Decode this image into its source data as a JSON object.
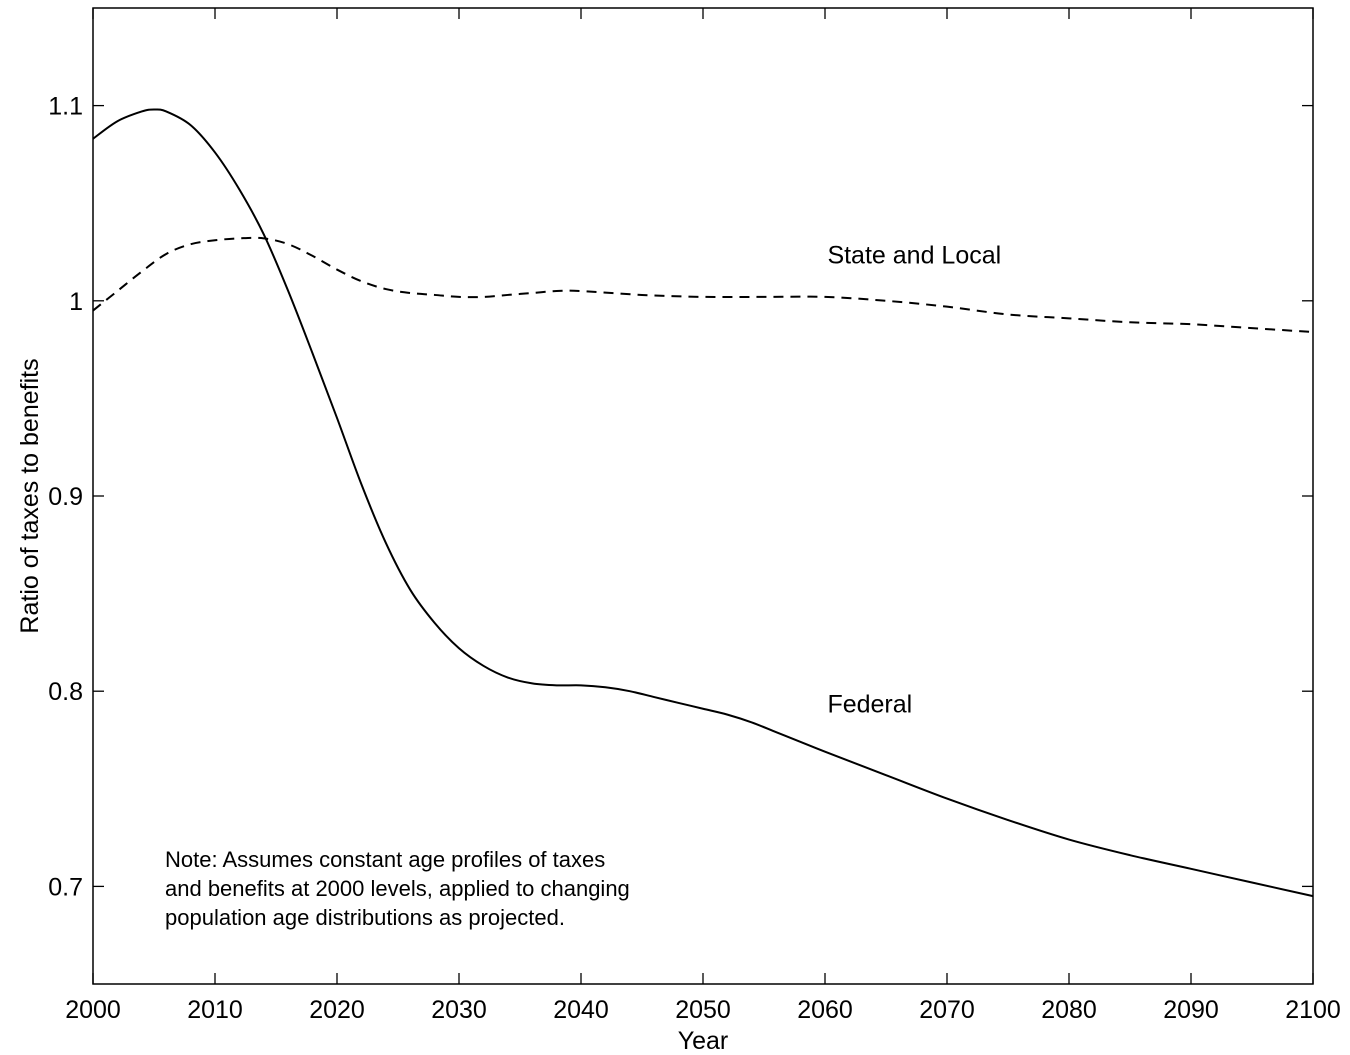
{
  "chart_data": {
    "type": "line",
    "xlabel": "Year",
    "ylabel": "Ratio of taxes to benefits",
    "xlim": [
      2000,
      2100
    ],
    "ylim": [
      0.65,
      1.15
    ],
    "xticks": [
      2000,
      2010,
      2020,
      2030,
      2040,
      2050,
      2060,
      2070,
      2080,
      2090,
      2100
    ],
    "xtick_labels": [
      "2000",
      "2010",
      "2020",
      "2030",
      "2040",
      "2050",
      "2060",
      "2070",
      "2080",
      "2090",
      "2100"
    ],
    "yticks": [
      0.7,
      0.8,
      0.9,
      1.0,
      1.1
    ],
    "ytick_labels": [
      "0.7",
      "0.8",
      "0.9",
      "1",
      "1.1"
    ],
    "grid": false,
    "legend": "none",
    "series": [
      {
        "name": "Federal",
        "style": "solid",
        "color": "#000000",
        "x": [
          2000,
          2002,
          2004,
          2005,
          2006,
          2008,
          2010,
          2012,
          2014,
          2016,
          2018,
          2020,
          2022,
          2024,
          2026,
          2028,
          2030,
          2032,
          2034,
          2036,
          2038,
          2040,
          2042,
          2044,
          2046,
          2048,
          2050,
          2052,
          2054,
          2056,
          2058,
          2060,
          2065,
          2070,
          2075,
          2080,
          2085,
          2090,
          2095,
          2100
        ],
        "y": [
          1.083,
          1.092,
          1.097,
          1.098,
          1.097,
          1.09,
          1.076,
          1.057,
          1.034,
          1.005,
          0.973,
          0.94,
          0.906,
          0.876,
          0.852,
          0.835,
          0.822,
          0.813,
          0.807,
          0.804,
          0.803,
          0.803,
          0.802,
          0.8,
          0.797,
          0.794,
          0.791,
          0.788,
          0.784,
          0.779,
          0.774,
          0.769,
          0.757,
          0.745,
          0.734,
          0.724,
          0.716,
          0.709,
          0.702,
          0.695
        ]
      },
      {
        "name": "State and Local",
        "style": "dashed",
        "color": "#000000",
        "x": [
          2000,
          2002,
          2004,
          2006,
          2008,
          2010,
          2012,
          2014,
          2016,
          2018,
          2020,
          2022,
          2024,
          2026,
          2028,
          2030,
          2032,
          2034,
          2036,
          2038,
          2040,
          2045,
          2050,
          2055,
          2060,
          2065,
          2070,
          2075,
          2080,
          2085,
          2090,
          2095,
          2100
        ],
        "y": [
          0.995,
          1.005,
          1.015,
          1.024,
          1.029,
          1.031,
          1.032,
          1.032,
          1.029,
          1.023,
          1.016,
          1.01,
          1.006,
          1.004,
          1.003,
          1.002,
          1.002,
          1.003,
          1.004,
          1.005,
          1.005,
          1.003,
          1.002,
          1.002,
          1.002,
          1.0,
          0.997,
          0.993,
          0.991,
          0.989,
          0.988,
          0.986,
          0.984
        ]
      }
    ],
    "annotations": [
      {
        "text": "State and Local",
        "x": 2060.2,
        "y": 1.019
      },
      {
        "text": "Federal",
        "x": 2060.2,
        "y": 0.789
      }
    ],
    "note": [
      "Note:  Assumes constant age profiles of taxes",
      "and benefits at 2000 levels, applied to changing",
      "population age distributions as projected."
    ]
  }
}
